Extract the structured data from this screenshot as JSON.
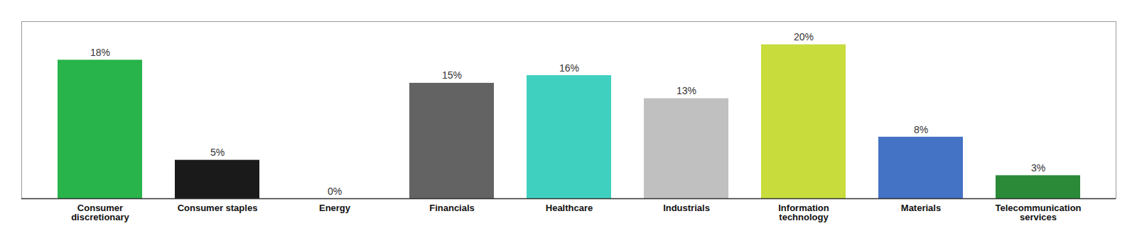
{
  "chart_data": {
    "type": "bar",
    "categories": [
      "Consumer\ndiscretionary",
      "Consumer staples",
      "Energy",
      "Financials",
      "Healthcare",
      "Industrials",
      "Information\ntechnology",
      "Materials",
      "Telecommunication\nservices"
    ],
    "values": [
      18,
      5,
      0,
      15,
      16,
      13,
      20,
      8,
      3
    ],
    "value_labels": [
      "18%",
      "5%",
      "0%",
      "15%",
      "16%",
      "13%",
      "20%",
      "8%",
      "3%"
    ],
    "colors": [
      "#28b34b",
      "#1a1a1a",
      "#555555",
      "#636363",
      "#40d0c0",
      "#c0c0c0",
      "#c8dc3c",
      "#4472c4",
      "#2a8a38"
    ],
    "ylim": [
      0,
      23
    ],
    "data_labels": true,
    "tick_labels": "x",
    "grid": false
  }
}
